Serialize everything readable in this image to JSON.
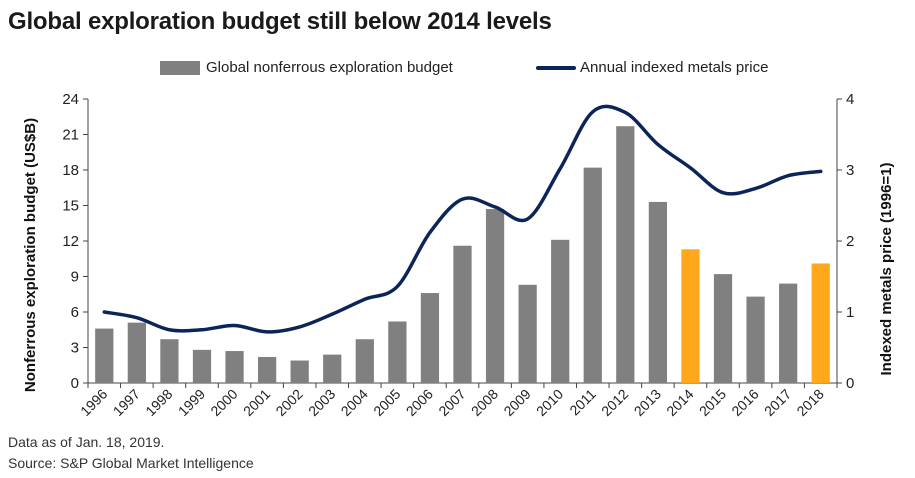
{
  "title": "Global exploration budget still below 2014 levels",
  "legend": {
    "bar_label": "Global nonferrous exploration budget",
    "line_label": "Annual indexed metals price"
  },
  "footer": {
    "note": "Data as of Jan. 18, 2019.",
    "source": "Source: S&P Global Market Intelligence"
  },
  "colors": {
    "bar": "#808080",
    "bar_highlight": "#FFA81C",
    "line": "#0B2559",
    "axis": "#444444"
  },
  "chart_data": {
    "type": "bar+line",
    "title": "Global exploration budget still below 2014 levels",
    "categories": [
      "1996",
      "1997",
      "1998",
      "1999",
      "2000",
      "2001",
      "2002",
      "2003",
      "2004",
      "2005",
      "2006",
      "2007",
      "2008",
      "2009",
      "2010",
      "2011",
      "2012",
      "2013",
      "2014",
      "2015",
      "2016",
      "2017",
      "2018"
    ],
    "series": [
      {
        "name": "Global nonferrous exploration budget",
        "type": "bar",
        "axis": "left",
        "values": [
          4.6,
          5.1,
          3.7,
          2.8,
          2.7,
          2.2,
          1.9,
          2.4,
          3.7,
          5.2,
          7.6,
          11.6,
          14.7,
          8.3,
          12.1,
          18.2,
          21.7,
          15.3,
          11.3,
          9.2,
          7.3,
          8.4,
          10.1
        ],
        "highlight_categories": [
          "2014",
          "2018"
        ]
      },
      {
        "name": "Annual indexed metals price",
        "type": "line",
        "axis": "right",
        "values": [
          1.0,
          0.92,
          0.75,
          0.75,
          0.81,
          0.72,
          0.79,
          0.97,
          1.18,
          1.36,
          2.12,
          2.59,
          2.48,
          2.31,
          3.02,
          3.82,
          3.81,
          3.36,
          3.03,
          2.68,
          2.74,
          2.92,
          2.98
        ]
      }
    ],
    "ylabel": "Nonferrous exploration budget (US$B)",
    "y2label": "Indexed metals price  (1996=1)",
    "ylim": [
      0,
      24
    ],
    "y2lim": [
      0,
      4
    ],
    "yticks": [
      "0",
      "3",
      "6",
      "9",
      "12",
      "15",
      "18",
      "21",
      "24"
    ],
    "y2ticks": [
      "0",
      "1",
      "2",
      "3",
      "4"
    ],
    "grid": false,
    "legend_position": "top"
  }
}
